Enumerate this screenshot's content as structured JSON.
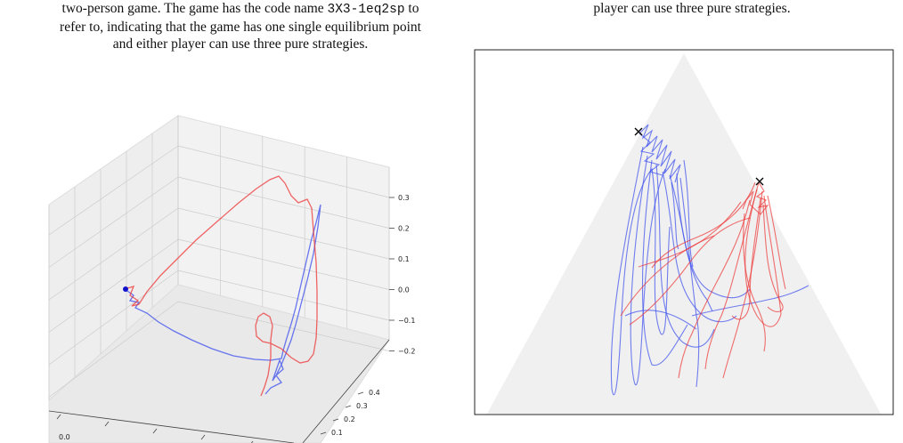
{
  "caption_left": {
    "line1": "two-person game. The game has the code name ",
    "code": "3X3-1eq2sp",
    "line1_end": " to",
    "line2": "refer to, indicating that the game has one single equilibrium point",
    "line3": "and either player can use three pure strategies."
  },
  "caption_right": {
    "line1": "player can use three pure strategies."
  },
  "colors": {
    "blue": "#4455ee",
    "red": "#ee3333",
    "pane": "#f0f0f0",
    "grid": "#cccccc"
  },
  "chart_data": [
    {
      "type": "line",
      "projection": "3d",
      "zlim": [
        -0.25,
        0.35
      ],
      "z_ticks": [
        "0.3",
        "0.2",
        "0.1",
        "0.0",
        "−0.1",
        "−0.2"
      ],
      "y_ticks": [
        "0.1",
        "0.2",
        "0.3",
        "0.4"
      ],
      "x_ticks": [
        "0.0"
      ],
      "grid": true,
      "series": [
        {
          "color": "blue"
        },
        {
          "color": "red"
        }
      ]
    },
    {
      "type": "line",
      "projection": "simplex",
      "grid": false,
      "markers": [
        "x",
        "x"
      ],
      "series": [
        {
          "color": "blue"
        },
        {
          "color": "red"
        }
      ]
    }
  ]
}
